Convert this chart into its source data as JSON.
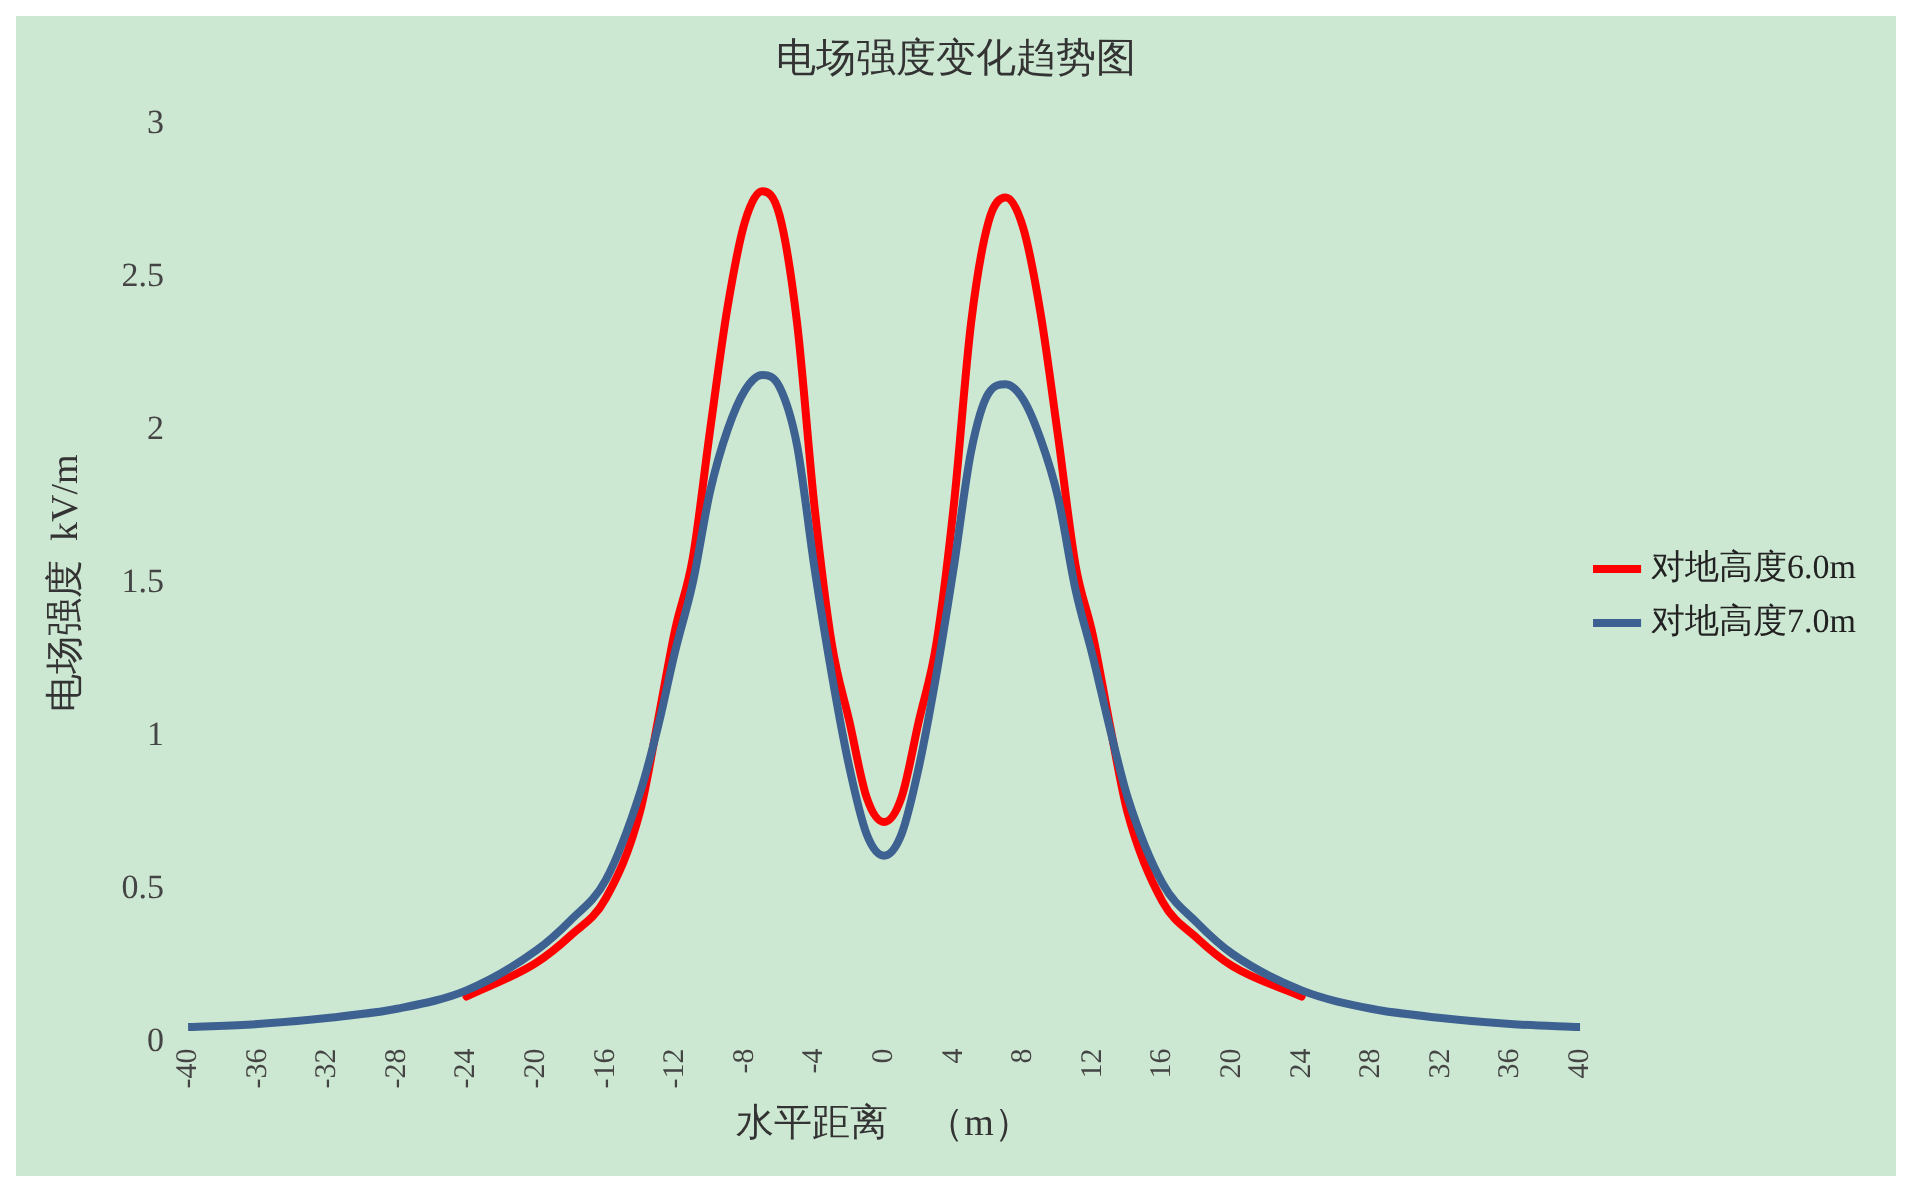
{
  "chart_data": {
    "type": "line",
    "title": "电场强度变化趋势图",
    "xlabel": "水平距离　（m）",
    "ylabel": "电场强度  kV/m",
    "x": [
      -40,
      -36,
      -32,
      -28,
      -24,
      -20,
      -18,
      -16,
      -14,
      -13,
      -12,
      -11,
      -10,
      -9,
      -8,
      -7,
      -6,
      -5,
      -4,
      -3,
      -2,
      -1,
      0,
      1,
      2,
      3,
      4,
      5,
      6,
      7,
      8,
      9,
      10,
      11,
      12,
      13,
      14,
      16,
      18,
      20,
      24,
      28,
      32,
      36,
      40
    ],
    "series": [
      {
        "name": "对地高度6.0m",
        "color": "#ff0000",
        "values": [
          null,
          null,
          null,
          null,
          0.15,
          0.26,
          0.35,
          0.47,
          0.76,
          1.05,
          1.35,
          1.58,
          2.0,
          2.4,
          2.68,
          2.78,
          2.7,
          2.35,
          1.75,
          1.3,
          1.05,
          0.8,
          0.72,
          0.8,
          1.05,
          1.3,
          1.75,
          2.35,
          2.68,
          2.76,
          2.66,
          2.38,
          1.98,
          1.56,
          1.33,
          1.03,
          0.75,
          0.46,
          0.34,
          0.25,
          0.15,
          null,
          null,
          null,
          null
        ]
      },
      {
        "name": "对地高度7.0m",
        "color": "#3d6190",
        "values": [
          0.05,
          0.06,
          0.08,
          0.11,
          0.17,
          0.3,
          0.4,
          0.53,
          0.82,
          1.03,
          1.28,
          1.5,
          1.8,
          2.0,
          2.13,
          2.18,
          2.14,
          1.95,
          1.55,
          1.2,
          0.9,
          0.68,
          0.61,
          0.68,
          0.9,
          1.2,
          1.55,
          1.93,
          2.12,
          2.15,
          2.1,
          1.97,
          1.78,
          1.48,
          1.26,
          1.02,
          0.8,
          0.52,
          0.39,
          0.29,
          0.17,
          0.11,
          0.08,
          0.06,
          0.05
        ]
      }
    ],
    "xlim": [
      -40,
      40
    ],
    "xticks": [
      -40,
      -36,
      -32,
      -28,
      -24,
      -20,
      -16,
      -12,
      -8,
      -4,
      0,
      4,
      8,
      12,
      16,
      20,
      24,
      28,
      32,
      36,
      40
    ],
    "ylim": [
      0,
      3
    ],
    "yticks": [
      0,
      0.5,
      1,
      1.5,
      2,
      2.5,
      3
    ],
    "grid": false,
    "legend": "right",
    "marker": "none",
    "line_style": "solid"
  }
}
